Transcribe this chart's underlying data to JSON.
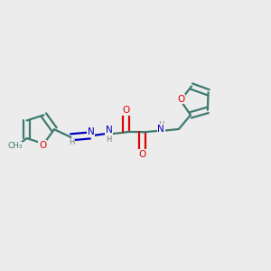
{
  "background_color": "#ececec",
  "bond_color": "#3d7a6e",
  "bond_width": 1.6,
  "o_color": "#dd0000",
  "n_color": "#0000bb",
  "h_color": "#777777",
  "figsize": [
    3.0,
    3.0
  ],
  "dpi": 100,
  "xlim": [
    -0.05,
    1.05
  ],
  "ylim": [
    0.28,
    0.82
  ]
}
